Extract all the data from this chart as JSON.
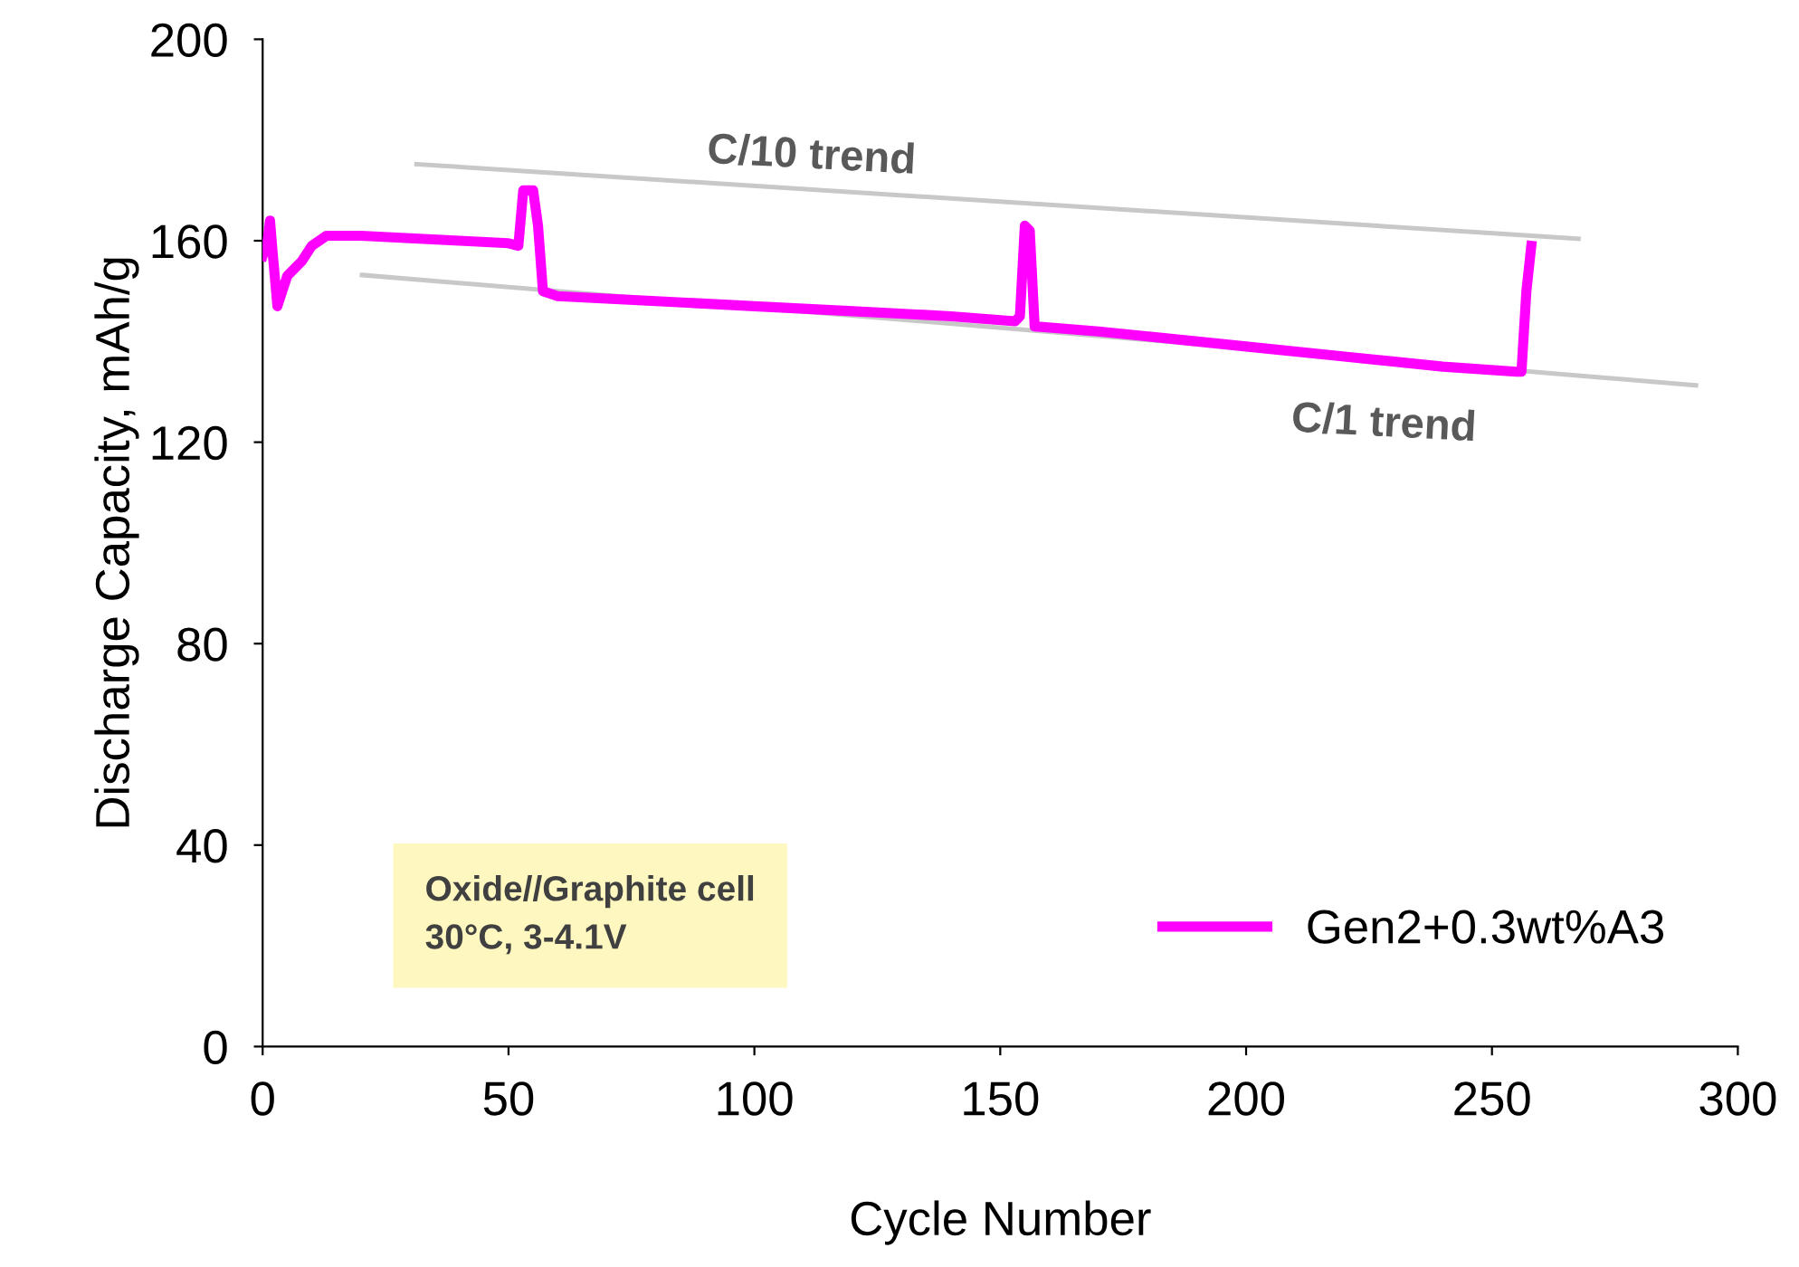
{
  "chart_data": {
    "type": "line",
    "xlabel": "Cycle Number",
    "ylabel": "Discharge Capacity, mAh/g",
    "xlim": [
      0,
      300
    ],
    "xticks": [
      0,
      50,
      100,
      150,
      200,
      250,
      300
    ],
    "ylim": [
      0,
      200
    ],
    "yticks": [
      0,
      40,
      80,
      120,
      160,
      200
    ],
    "grid": false,
    "legend": "bottom right",
    "marker": "none",
    "line_style": "solid",
    "series": [
      {
        "name": "Gen2+0.3wt%A3",
        "color": "#ff00ff",
        "x": [
          0,
          1,
          1.5,
          2,
          3,
          4,
          5,
          8,
          10,
          13,
          20,
          30,
          40,
          50,
          52,
          53,
          55,
          56,
          57,
          60,
          80,
          100,
          120,
          140,
          153,
          154,
          155,
          156,
          157,
          170,
          180,
          200,
          220,
          240,
          255,
          256,
          257,
          258
        ],
        "values": [
          157,
          160,
          164,
          158,
          147,
          150,
          153,
          156,
          159,
          161,
          161,
          160.5,
          160,
          159.5,
          159,
          170,
          170,
          163,
          150,
          149,
          148,
          147,
          146,
          145,
          144,
          145,
          163,
          162,
          143,
          142,
          141,
          139,
          137,
          135,
          134,
          134,
          150,
          159
        ]
      },
      {
        "type": "line",
        "color": "#c8c8c8",
        "x": [
          31.3,
          267.6
        ],
        "values": [
          175.2,
          160.4
        ]
      },
      {
        "type": "line",
        "color": "#c8c8c8",
        "x": [
          20.2,
          291.5
        ],
        "values": [
          153.2,
          131.3
        ]
      }
    ],
    "annotations": [
      "C/10 trend",
      "C/1 trend",
      "Oxide//Graphite cell\n30°C, 3-4.1V"
    ]
  }
}
